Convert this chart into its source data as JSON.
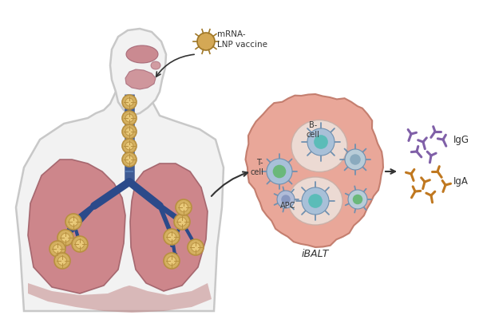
{
  "bg_color": "#ffffff",
  "body_outline_color": "#c8c8c8",
  "body_face_color": "#f2f2f2",
  "lung_color": "#c97a80",
  "lung_outline_color": "#a06068",
  "airway_color": "#2b4a8a",
  "lymph_node_color": "#d4b060",
  "lymph_node_outline": "#b89040",
  "lymph_node_inner": "#e8c878",
  "ibalt_bg": "#e8a090",
  "ibalt_zone_color": "#ede0da",
  "bcell_center_color": "#5bbcb8",
  "bcell_body_color": "#a8c0d8",
  "tcell_center_color": "#6ab87a",
  "tcell_body_color": "#a8c0d8",
  "apc_center_color": "#5bbcb8",
  "apc_body_color": "#a8c0d8",
  "igg_color": "#8060a8",
  "iga_color": "#c07820",
  "text_color": "#333333",
  "nose_color": "#c47880",
  "vaccine_particle_color": "#d4a855",
  "labels": {
    "mrna_lnp": "mRNA-\nLNP vaccine",
    "bcell": "B-\ncell",
    "tcell": "T-\ncell",
    "apc": "APC",
    "ibalt": "iBALT",
    "igg": "IgG",
    "iga": "IgA"
  },
  "figsize": [
    6.0,
    4.05
  ],
  "dpi": 100
}
